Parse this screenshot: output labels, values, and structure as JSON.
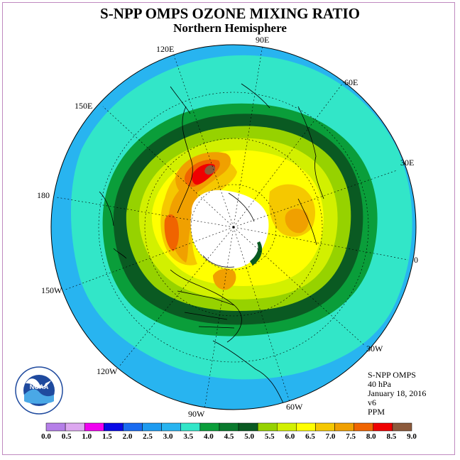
{
  "title": "S-NPP OMPS OZONE MIXING RATIO",
  "subtitle": "Northern Hemisphere",
  "longitude_labels": [
    "90E",
    "60E",
    "30E",
    "0",
    "30W",
    "60W",
    "90W",
    "120W",
    "150W",
    "180",
    "150E",
    "120E"
  ],
  "info": {
    "line1": "S-NPP OMPS",
    "line2": "40 hPa",
    "line3": "January 18, 2016",
    "line4": "v6",
    "line5": "PPM"
  },
  "colorbar": {
    "ticks": [
      "0.0",
      "0.5",
      "1.0",
      "1.5",
      "2.0",
      "2.5",
      "3.0",
      "3.5",
      "4.0",
      "4.5",
      "5.0",
      "5.5",
      "6.0",
      "6.5",
      "7.0",
      "7.5",
      "8.0",
      "8.5",
      "9.0"
    ],
    "colors": [
      "#b57fe8",
      "#dda8f0",
      "#f000f0",
      "#0a0ae6",
      "#1a6bf0",
      "#1e9bf0",
      "#28b4f0",
      "#32e6c8",
      "#0a9e3a",
      "#0a7a2e",
      "#0a5a22",
      "#96d200",
      "#d2f000",
      "#ffff00",
      "#f5c800",
      "#f0a000",
      "#f06400",
      "#f00000",
      "#8c5a3c"
    ]
  },
  "logo_text": "NOAA",
  "logo_ring_text": "NATIONAL OCEANIC AND ATMOSPHERIC ADMINISTRATION U.S. DEPARTMENT OF COMMERCE"
}
